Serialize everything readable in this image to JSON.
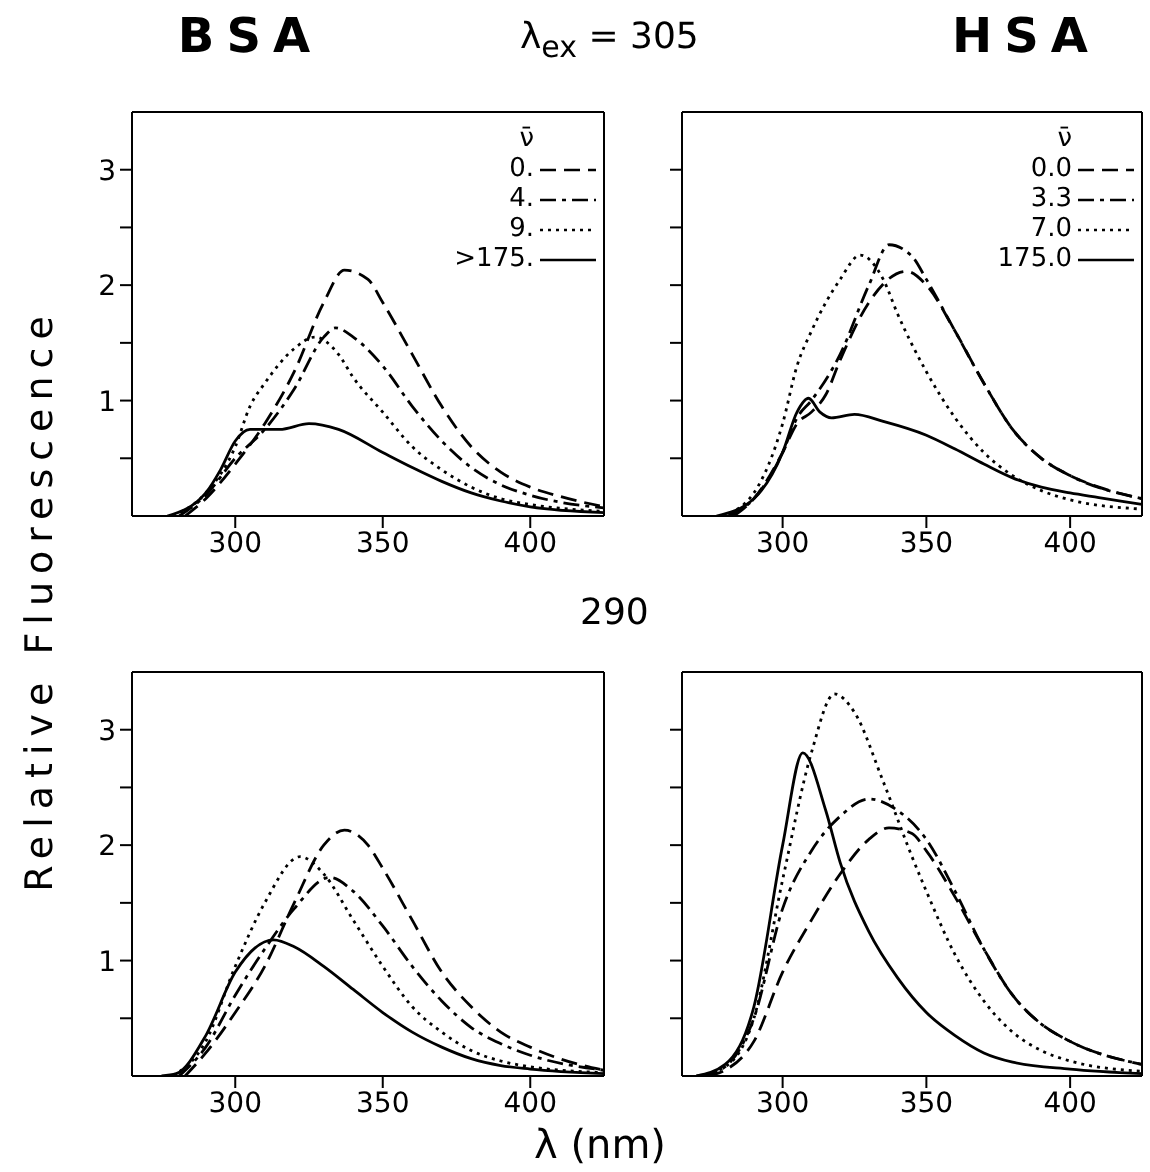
{
  "chart_data": [
    {
      "type": "line",
      "title": "BSA",
      "ylabel": "Relative Fluorescence",
      "annotations": [
        "λ$_{ex}$ = 305"
      ],
      "legend": "top right",
      "legend_title": "ν̄",
      "xlim": [
        265,
        425
      ],
      "ylim": [
        0,
        3.5
      ],
      "xticks": [
        300,
        350,
        400
      ],
      "yticks": [
        {
          "value": 0.5,
          "label": null
        },
        1,
        {
          "value": 1.5,
          "label": null
        },
        2,
        {
          "value": 2.5,
          "label": null
        },
        3
      ],
      "series": [
        {
          "name": "0.",
          "color": "#000000",
          "line_style": "dashed",
          "x": [
            283,
            290,
            300,
            310,
            320,
            330,
            337,
            345,
            350,
            360,
            370,
            380,
            390,
            400,
            410,
            425
          ],
          "values": [
            0,
            0.15,
            0.45,
            0.8,
            1.25,
            1.85,
            2.13,
            2.05,
            1.85,
            1.4,
            0.95,
            0.6,
            0.38,
            0.25,
            0.17,
            0.08
          ]
        },
        {
          "name": "4.",
          "color": "#000000",
          "line_style": "dashdot",
          "x": [
            281,
            290,
            300,
            310,
            320,
            330,
            334,
            340,
            350,
            360,
            370,
            380,
            390,
            400,
            425
          ],
          "values": [
            0,
            0.18,
            0.5,
            0.75,
            1.1,
            1.55,
            1.63,
            1.55,
            1.3,
            0.95,
            0.65,
            0.42,
            0.27,
            0.18,
            0.07
          ]
        },
        {
          "name": "9.",
          "color": "#000000",
          "line_style": "dotted",
          "x": [
            279,
            290,
            300,
            305,
            310,
            320,
            327,
            335,
            340,
            350,
            360,
            370,
            380,
            390,
            400,
            425
          ],
          "values": [
            0,
            0.2,
            0.6,
            0.95,
            1.15,
            1.45,
            1.55,
            1.4,
            1.2,
            0.9,
            0.6,
            0.4,
            0.25,
            0.15,
            0.1,
            0.04
          ]
        },
        {
          "name": ">175.",
          "color": "#000000",
          "line_style": "solid",
          "x": [
            277,
            290,
            295,
            300,
            305,
            310,
            315,
            325,
            335,
            350,
            360,
            370,
            380,
            390,
            400,
            425
          ],
          "values": [
            0,
            0.2,
            0.4,
            0.65,
            0.75,
            0.75,
            0.75,
            0.8,
            0.75,
            0.55,
            0.42,
            0.3,
            0.2,
            0.13,
            0.08,
            0.03
          ]
        }
      ]
    },
    {
      "type": "line",
      "title": "HSA",
      "legend": "top right",
      "legend_title": "ν̄",
      "tick_labels": "x",
      "xlim": [
        265,
        425
      ],
      "ylim": [
        0,
        3.5
      ],
      "xticks": [
        300,
        350,
        400
      ],
      "yticks": [
        {
          "value": 0.5,
          "label": null
        },
        1,
        {
          "value": 1.5,
          "label": null
        },
        2,
        {
          "value": 2.5,
          "label": null
        },
        3
      ],
      "series": [
        {
          "name": "0.0",
          "color": "#000000",
          "line_style": "dashed",
          "x": [
            283,
            290,
            300,
            305,
            310,
            315,
            320,
            330,
            343,
            350,
            360,
            370,
            380,
            390,
            400,
            410,
            425
          ],
          "values": [
            0,
            0.15,
            0.55,
            0.8,
            0.9,
            1.05,
            1.35,
            1.85,
            2.12,
            2.0,
            1.6,
            1.15,
            0.75,
            0.5,
            0.35,
            0.25,
            0.15
          ]
        },
        {
          "name": "3.3",
          "color": "#000000",
          "line_style": "dashdot",
          "x": [
            281,
            290,
            300,
            305,
            310,
            320,
            330,
            337,
            345,
            350,
            360,
            370,
            380,
            390,
            400,
            425
          ],
          "values": [
            0,
            0.15,
            0.55,
            0.85,
            1.0,
            1.4,
            2.0,
            2.35,
            2.25,
            2.05,
            1.6,
            1.15,
            0.75,
            0.5,
            0.35,
            0.15
          ]
        },
        {
          "name": "7.0",
          "color": "#000000",
          "line_style": "dotted",
          "x": [
            279,
            290,
            300,
            305,
            310,
            320,
            327,
            335,
            340,
            350,
            360,
            370,
            380,
            390,
            400,
            425
          ],
          "values": [
            0,
            0.2,
            0.8,
            1.3,
            1.6,
            2.05,
            2.26,
            2.05,
            1.75,
            1.25,
            0.85,
            0.55,
            0.35,
            0.22,
            0.14,
            0.06
          ]
        },
        {
          "name": "175.0",
          "color": "#000000",
          "line_style": "solid",
          "x": [
            277,
            290,
            300,
            305,
            309,
            313,
            317,
            325,
            335,
            350,
            360,
            370,
            380,
            390,
            400,
            410,
            425
          ],
          "values": [
            0,
            0.15,
            0.55,
            0.9,
            1.02,
            0.9,
            0.85,
            0.88,
            0.82,
            0.7,
            0.58,
            0.45,
            0.33,
            0.25,
            0.2,
            0.16,
            0.1
          ]
        }
      ]
    },
    {
      "type": "line",
      "xlabel": "λ (nm)",
      "annotations": [
        "290"
      ],
      "xlim": [
        265,
        425
      ],
      "ylim": [
        0,
        3.5
      ],
      "xticks": [
        300,
        350,
        400
      ],
      "yticks": [
        {
          "value": 0.5,
          "label": null
        },
        1,
        {
          "value": 1.5,
          "label": null
        },
        2,
        {
          "value": 2.5,
          "label": null
        },
        3
      ],
      "series": [
        {
          "color": "#000000",
          "line_style": "dashed",
          "x": [
            283,
            290,
            300,
            310,
            320,
            330,
            337,
            345,
            350,
            360,
            370,
            380,
            390,
            400,
            410,
            425
          ],
          "values": [
            0,
            0.2,
            0.55,
            0.95,
            1.5,
            2.0,
            2.13,
            2.0,
            1.8,
            1.35,
            0.9,
            0.6,
            0.38,
            0.25,
            0.15,
            0.05
          ]
        },
        {
          "color": "#000000",
          "line_style": "dashdot",
          "x": [
            281,
            290,
            300,
            310,
            320,
            332,
            340,
            350,
            360,
            370,
            380,
            390,
            400,
            425
          ],
          "values": [
            0,
            0.25,
            0.7,
            1.1,
            1.45,
            1.72,
            1.6,
            1.3,
            0.95,
            0.65,
            0.42,
            0.28,
            0.18,
            0.05
          ]
        },
        {
          "color": "#000000",
          "line_style": "dotted",
          "x": [
            279,
            290,
            300,
            310,
            322,
            330,
            340,
            350,
            360,
            370,
            380,
            390,
            400,
            425
          ],
          "values": [
            0,
            0.3,
            0.95,
            1.5,
            1.9,
            1.75,
            1.35,
            0.95,
            0.6,
            0.38,
            0.22,
            0.13,
            0.08,
            0.03
          ]
        },
        {
          "color": "#000000",
          "line_style": "solid",
          "x": [
            275,
            280,
            290,
            300,
            313,
            320,
            330,
            340,
            350,
            360,
            370,
            380,
            390,
            400,
            425
          ],
          "values": [
            0,
            0.02,
            0.35,
            0.9,
            1.18,
            1.12,
            0.95,
            0.75,
            0.55,
            0.38,
            0.25,
            0.15,
            0.09,
            0.06,
            0.02
          ]
        }
      ]
    },
    {
      "type": "line",
      "tick_labels": "x",
      "xlim": [
        265,
        425
      ],
      "ylim": [
        0,
        3.5
      ],
      "xticks": [
        300,
        350,
        400
      ],
      "yticks": [
        {
          "value": 0.5,
          "label": null
        },
        1,
        {
          "value": 1.5,
          "label": null
        },
        2,
        {
          "value": 2.5,
          "label": null
        },
        3
      ],
      "series": [
        {
          "color": "#000000",
          "line_style": "dashed",
          "x": [
            274,
            280,
            290,
            300,
            310,
            320,
            330,
            337,
            345,
            350,
            360,
            370,
            380,
            390,
            400,
            425
          ],
          "values": [
            0,
            0.05,
            0.3,
            0.9,
            1.35,
            1.75,
            2.05,
            2.15,
            2.1,
            1.95,
            1.55,
            1.1,
            0.7,
            0.45,
            0.3,
            0.1
          ]
        },
        {
          "color": "#000000",
          "line_style": "dashdot",
          "x": [
            272,
            280,
            290,
            300,
            310,
            320,
            330,
            340,
            350,
            360,
            370,
            380,
            390,
            400,
            425
          ],
          "values": [
            0,
            0.08,
            0.5,
            1.45,
            1.95,
            2.25,
            2.4,
            2.3,
            2.05,
            1.6,
            1.1,
            0.7,
            0.45,
            0.3,
            0.1
          ]
        },
        {
          "color": "#000000",
          "line_style": "dotted",
          "x": [
            270,
            280,
            290,
            300,
            310,
            318,
            325,
            335,
            345,
            350,
            360,
            370,
            380,
            390,
            400,
            425
          ],
          "values": [
            0,
            0.08,
            0.5,
            1.7,
            2.8,
            3.31,
            3.15,
            2.55,
            1.9,
            1.6,
            1.05,
            0.65,
            0.38,
            0.22,
            0.13,
            0.04
          ]
        },
        {
          "color": "#000000",
          "line_style": "solid",
          "x": [
            270,
            280,
            290,
            300,
            307,
            315,
            320,
            330,
            340,
            350,
            360,
            370,
            380,
            400,
            425
          ],
          "values": [
            0,
            0.1,
            0.6,
            2.0,
            2.8,
            2.3,
            1.85,
            1.25,
            0.85,
            0.55,
            0.35,
            0.2,
            0.12,
            0.06,
            0.02
          ]
        }
      ]
    }
  ]
}
